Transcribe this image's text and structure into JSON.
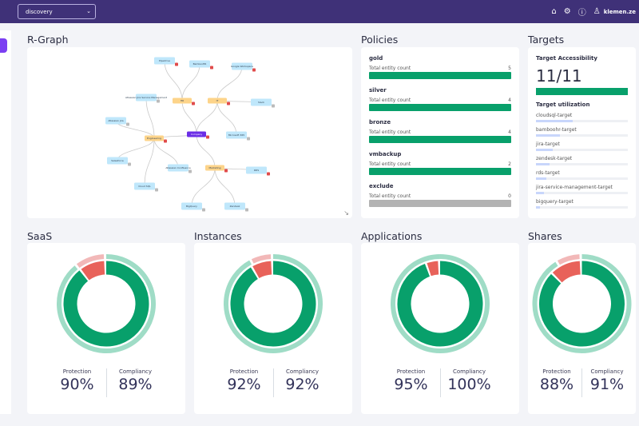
{
  "topbar": {
    "context": "discovery",
    "user": "klemen.ze"
  },
  "rgraph": {
    "title": "R-Graph",
    "nodes": {
      "company": "Company",
      "hr": "HR",
      "it": "IT",
      "eng": "Engineering",
      "mkt": "Marketing",
      "pipedrive": "Pipedrive",
      "bamboohr": "BambooHR",
      "gws": "Google Workspace",
      "slack": "Slack",
      "ms365": "Microsoft 365",
      "jsm": "Atlassian Jira Service Management",
      "jira": "Atlassian Jira",
      "salesforce": "Salesforce",
      "confluence": "Atlassian Confluence",
      "cloudsql": "Cloud SQL",
      "rds": "RDS",
      "bigquery": "BigQuery",
      "zendesk": "Zendesk"
    }
  },
  "policies": {
    "title": "Policies",
    "count_label": "Total entity count",
    "items": [
      {
        "name": "gold",
        "count": "5",
        "max": 5
      },
      {
        "name": "silver",
        "count": "4",
        "max": 4
      },
      {
        "name": "bronze",
        "count": "4",
        "max": 4
      },
      {
        "name": "vmbackup",
        "count": "2",
        "max": 2
      },
      {
        "name": "exclude",
        "count": "0",
        "max": 0
      }
    ]
  },
  "targets": {
    "title": "Targets",
    "accessibility_label": "Target Accessibility",
    "accessibility_value": "11/11",
    "accessibility_fraction": 1.0,
    "utilization_label": "Target utilization",
    "items": [
      {
        "name": "cloudsql-target",
        "fraction": 0.4
      },
      {
        "name": "bamboohr-target",
        "fraction": 0.26
      },
      {
        "name": "jira-target",
        "fraction": 0.18
      },
      {
        "name": "zendesk-target",
        "fraction": 0.15
      },
      {
        "name": "rds-target",
        "fraction": 0.11
      },
      {
        "name": "jira-service-management-target",
        "fraction": 0.09
      },
      {
        "name": "bigquery-target",
        "fraction": 0.04
      }
    ]
  },
  "summary": {
    "protection_label": "Protection",
    "compliancy_label": "Compliancy",
    "cards": [
      {
        "title": "SaaS",
        "protection": "90%",
        "compliancy": "89%",
        "p": 90,
        "c": 89
      },
      {
        "title": "Instances",
        "protection": "92%",
        "compliancy": "92%",
        "p": 92,
        "c": 92
      },
      {
        "title": "Applications",
        "protection": "95%",
        "compliancy": "100%",
        "p": 95,
        "c": 100
      },
      {
        "title": "Shares",
        "protection": "88%",
        "compliancy": "91%",
        "p": 88,
        "c": 91
      }
    ]
  },
  "colors": {
    "green": "#08a06b",
    "light_green": "#9fdcc6",
    "red": "#e8625a",
    "light_red": "#f2b8b8",
    "purple": "#3f3178"
  }
}
